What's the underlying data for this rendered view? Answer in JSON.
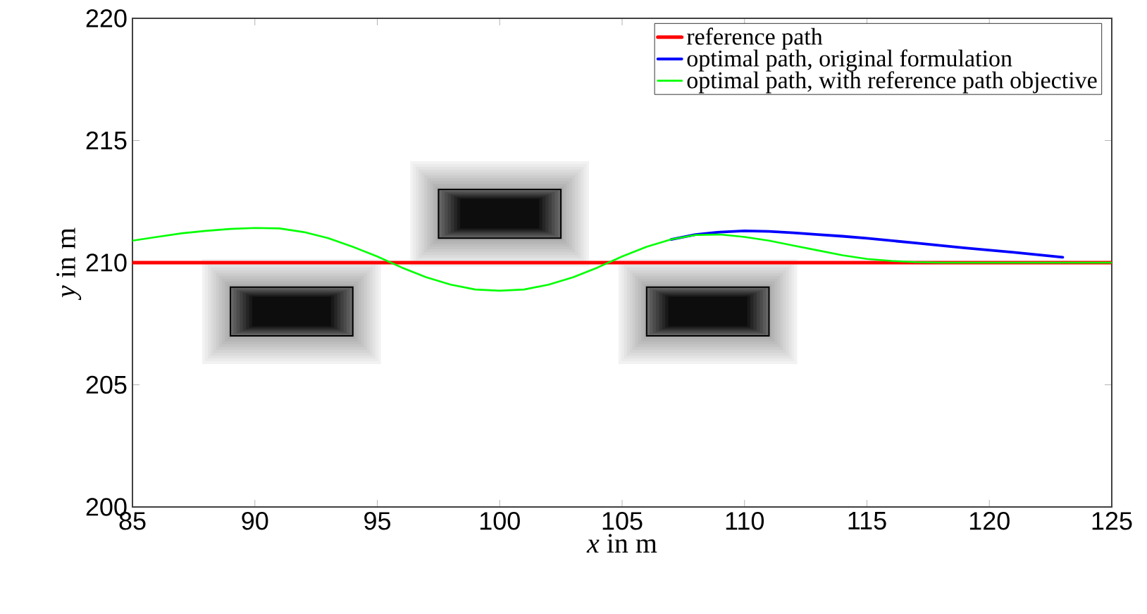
{
  "chart_data": {
    "type": "line",
    "xlabel": "*x* in m",
    "ylabel": "*y* in m",
    "xlim": [
      85,
      125
    ],
    "ylim": [
      200,
      220
    ],
    "xticks": [
      85,
      90,
      95,
      100,
      105,
      110,
      115,
      120,
      125
    ],
    "yticks": [
      200,
      205,
      210,
      215,
      220
    ],
    "legend": "top right",
    "grid": false,
    "marker": "none",
    "line_style": "solid",
    "series": [
      {
        "name": "reference path",
        "color": "#ff0000",
        "x": [
          85,
          125
        ],
        "values": [
          210,
          210
        ]
      },
      {
        "name": "optimal path, original formulation",
        "color": "#0000ff",
        "x": [
          107,
          108,
          109,
          110,
          111,
          112,
          113,
          114,
          115,
          117,
          119,
          121,
          123
        ],
        "values": [
          210.95,
          211.15,
          211.25,
          211.3,
          211.28,
          211.22,
          211.15,
          211.08,
          211.0,
          210.8,
          210.6,
          210.42,
          210.22
        ]
      },
      {
        "name": "optimal path, with reference path objective",
        "color": "#00ff00",
        "x": [
          85,
          86,
          87,
          88,
          89,
          90,
          91,
          92,
          93,
          94,
          95,
          96,
          97,
          98,
          99,
          100,
          101,
          102,
          103,
          104,
          105,
          106,
          107,
          108,
          109,
          110,
          111,
          112,
          113,
          114,
          115,
          116,
          117,
          118,
          125
        ],
        "values": [
          210.9,
          211.05,
          211.2,
          211.3,
          211.38,
          211.42,
          211.4,
          211.25,
          211.0,
          210.65,
          210.25,
          209.8,
          209.4,
          209.1,
          208.9,
          208.85,
          208.9,
          209.1,
          209.4,
          209.8,
          210.25,
          210.65,
          210.95,
          211.13,
          211.15,
          211.05,
          210.9,
          210.7,
          210.5,
          210.3,
          210.15,
          210.07,
          210.02,
          210.0,
          210.0
        ]
      }
    ]
  }
}
